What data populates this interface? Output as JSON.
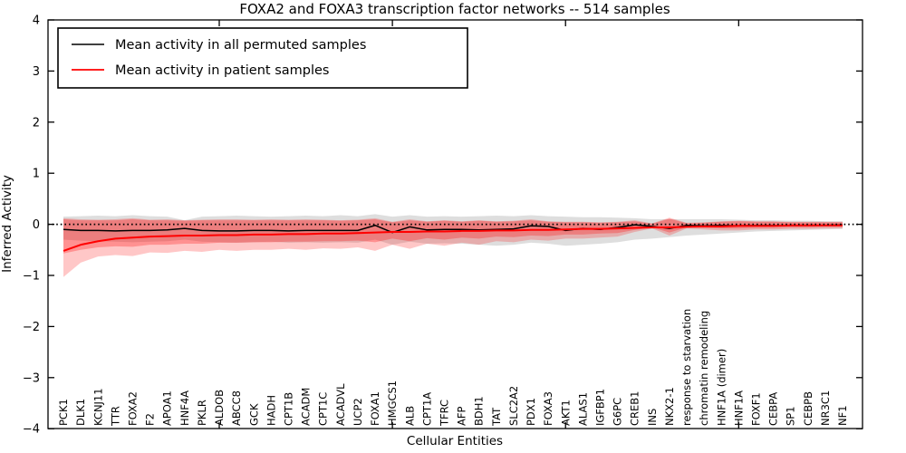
{
  "figure": {
    "background": "#ffffff",
    "frame_color": "#000000"
  },
  "chart_data": {
    "type": "line",
    "title": "FOXA2 and FOXA3 transcription factor networks -- 514 samples",
    "xlabel": "Cellular Entities",
    "ylabel": "Inferred Activity",
    "ylim": [
      -4,
      4
    ],
    "yticks": [
      -4,
      -3,
      -2,
      -1,
      0,
      1,
      2,
      3,
      4
    ],
    "ytick_labels": [
      "−4",
      "−3",
      "−2",
      "−1",
      "0",
      "1",
      "2",
      "3",
      "4"
    ],
    "xtick_data_positions": [
      10,
      20,
      30,
      40
    ],
    "grid": false,
    "zero_line": {
      "style": "dotted",
      "color": "#000000",
      "y": 0
    },
    "legend_position": "upper-left",
    "categories": [
      "PCK1",
      "DLK1",
      "KCNJ11",
      "TTR",
      "FOXA2",
      "F2",
      "APOA1",
      "HNF4A",
      "PKLR",
      "ALDOB",
      "ABCC8",
      "GCK",
      "HADH",
      "CPT1B",
      "ACADM",
      "CPT1C",
      "ACADVL",
      "UCP2",
      "FOXA1",
      "HMGCS1",
      "ALB",
      "CPT1A",
      "TFRC",
      "AFP",
      "BDH1",
      "TAT",
      "SLC2A2",
      "PDX1",
      "FOXA3",
      "AKT1",
      "ALAS1",
      "IGFBP1",
      "G6PC",
      "CREB1",
      "INS",
      "NKX2-1",
      "response to starvation",
      "chromatin remodeling",
      "HNF1A (dimer)",
      "HNF1A",
      "FOXF1",
      "CEBPA",
      "SP1",
      "CEBPB",
      "NR3C1",
      "NF1"
    ],
    "series": [
      {
        "name": "Mean activity in all permuted samples",
        "color": "#000000",
        "width": 1.5,
        "values": [
          -0.1,
          -0.12,
          -0.12,
          -0.13,
          -0.12,
          -0.12,
          -0.11,
          -0.08,
          -0.12,
          -0.13,
          -0.13,
          -0.12,
          -0.12,
          -0.13,
          -0.12,
          -0.12,
          -0.12,
          -0.12,
          -0.02,
          -0.16,
          -0.05,
          -0.11,
          -0.1,
          -0.1,
          -0.11,
          -0.1,
          -0.09,
          -0.03,
          -0.04,
          -0.12,
          -0.08,
          -0.1,
          -0.06,
          -0.01,
          -0.04,
          -0.08,
          -0.02,
          -0.03,
          -0.02,
          -0.03,
          -0.02,
          -0.02,
          -0.02,
          -0.02,
          -0.02,
          -0.01
        ]
      },
      {
        "name": "Mean activity in patient samples",
        "color": "#ff0000",
        "width": 2,
        "values": [
          -0.52,
          -0.4,
          -0.33,
          -0.28,
          -0.26,
          -0.24,
          -0.23,
          -0.22,
          -0.22,
          -0.21,
          -0.21,
          -0.2,
          -0.2,
          -0.19,
          -0.19,
          -0.18,
          -0.18,
          -0.17,
          -0.16,
          -0.15,
          -0.15,
          -0.14,
          -0.14,
          -0.13,
          -0.13,
          -0.12,
          -0.12,
          -0.11,
          -0.11,
          -0.1,
          -0.09,
          -0.09,
          -0.08,
          -0.07,
          -0.06,
          -0.06,
          -0.05,
          -0.04,
          -0.04,
          -0.03,
          -0.03,
          -0.03,
          -0.02,
          -0.02,
          -0.02,
          -0.02
        ]
      }
    ],
    "bands": [
      {
        "name": "permuted-samples-range",
        "color": "#000000",
        "opacity": 0.13,
        "upper": [
          0.15,
          0.16,
          0.17,
          0.16,
          0.18,
          0.16,
          0.15,
          0.08,
          0.15,
          0.16,
          0.17,
          0.16,
          0.15,
          0.16,
          0.17,
          0.16,
          0.18,
          0.16,
          0.2,
          0.15,
          0.18,
          0.15,
          0.16,
          0.15,
          0.16,
          0.17,
          0.16,
          0.18,
          0.16,
          0.15,
          0.14,
          0.14,
          0.13,
          0.12,
          0.1,
          0.1,
          0.1,
          0.1,
          0.1,
          0.09,
          0.08,
          0.08,
          0.07,
          0.07,
          0.06,
          0.06
        ],
        "lower": [
          -0.3,
          -0.32,
          -0.33,
          -0.34,
          -0.35,
          -0.34,
          -0.33,
          -0.3,
          -0.34,
          -0.35,
          -0.36,
          -0.35,
          -0.34,
          -0.36,
          -0.35,
          -0.36,
          -0.35,
          -0.36,
          -0.3,
          -0.4,
          -0.34,
          -0.38,
          -0.37,
          -0.38,
          -0.4,
          -0.42,
          -0.4,
          -0.36,
          -0.38,
          -0.42,
          -0.4,
          -0.38,
          -0.35,
          -0.3,
          -0.28,
          -0.25,
          -0.22,
          -0.2,
          -0.18,
          -0.16,
          -0.14,
          -0.13,
          -0.12,
          -0.11,
          -0.1,
          -0.09
        ]
      },
      {
        "name": "patient-samples-range-outer",
        "color": "#ff0000",
        "opacity": 0.22,
        "upper": [
          0.12,
          0.1,
          0.09,
          0.1,
          0.12,
          0.09,
          0.1,
          0.08,
          0.09,
          0.1,
          0.1,
          0.09,
          0.1,
          0.09,
          0.1,
          0.09,
          0.08,
          0.09,
          0.12,
          0.05,
          0.1,
          0.06,
          0.08,
          0.06,
          0.08,
          0.06,
          0.07,
          0.1,
          0.06,
          0.05,
          0.05,
          0.04,
          0.05,
          0.08,
          0.02,
          0.13,
          0.03,
          0.04,
          0.06,
          0.07,
          0.06,
          0.06,
          0.05,
          0.05,
          0.05,
          0.05
        ],
        "lower": [
          -1.03,
          -0.75,
          -0.63,
          -0.6,
          -0.62,
          -0.55,
          -0.56,
          -0.52,
          -0.54,
          -0.5,
          -0.52,
          -0.5,
          -0.5,
          -0.48,
          -0.5,
          -0.47,
          -0.48,
          -0.45,
          -0.52,
          -0.4,
          -0.48,
          -0.38,
          -0.42,
          -0.36,
          -0.4,
          -0.33,
          -0.35,
          -0.3,
          -0.32,
          -0.28,
          -0.28,
          -0.26,
          -0.24,
          -0.15,
          -0.08,
          -0.22,
          -0.08,
          -0.1,
          -0.12,
          -0.12,
          -0.1,
          -0.1,
          -0.09,
          -0.09,
          -0.08,
          -0.08
        ]
      },
      {
        "name": "patient-samples-range-inner",
        "color": "#ff0000",
        "opacity": 0.27,
        "upper": [
          0.1,
          0.08,
          0.08,
          0.08,
          0.1,
          0.08,
          0.08,
          0.07,
          0.08,
          0.08,
          0.08,
          0.08,
          0.08,
          0.08,
          0.08,
          0.08,
          0.07,
          0.08,
          0.1,
          0.04,
          0.08,
          0.05,
          0.07,
          0.05,
          0.07,
          0.05,
          0.06,
          0.08,
          0.05,
          0.04,
          0.04,
          0.03,
          0.04,
          0.06,
          0.01,
          0.11,
          0.02,
          0.03,
          0.05,
          0.06,
          0.05,
          0.05,
          0.04,
          0.04,
          0.04,
          0.04
        ],
        "lower": [
          -0.57,
          -0.5,
          -0.45,
          -0.43,
          -0.44,
          -0.4,
          -0.4,
          -0.38,
          -0.38,
          -0.36,
          -0.36,
          -0.35,
          -0.35,
          -0.34,
          -0.34,
          -0.33,
          -0.33,
          -0.32,
          -0.35,
          -0.28,
          -0.33,
          -0.27,
          -0.3,
          -0.26,
          -0.28,
          -0.24,
          -0.25,
          -0.22,
          -0.23,
          -0.2,
          -0.2,
          -0.18,
          -0.17,
          -0.11,
          -0.06,
          -0.16,
          -0.06,
          -0.07,
          -0.08,
          -0.08,
          -0.07,
          -0.07,
          -0.06,
          -0.06,
          -0.05,
          -0.05
        ]
      }
    ]
  }
}
